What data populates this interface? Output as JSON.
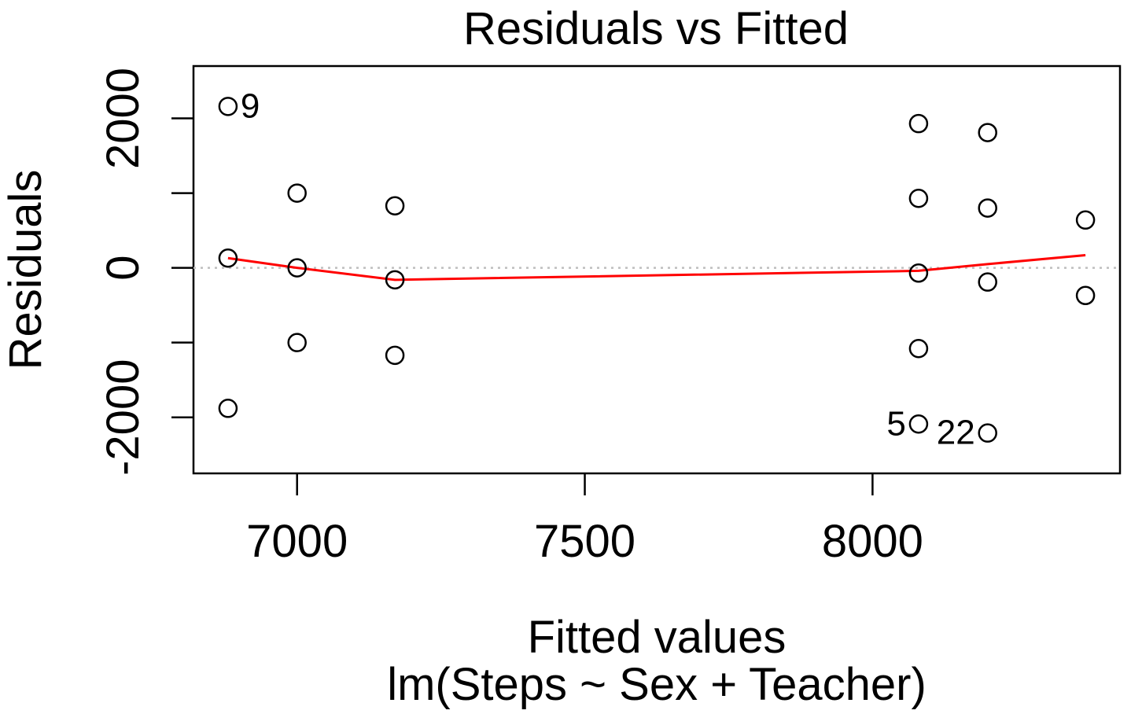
{
  "chart_data": {
    "type": "scatter",
    "title": "Residuals vs Fitted",
    "xlabel": "Fitted values",
    "subtitle": "lm(Steps ~ Sex + Teacher)",
    "ylabel": "Residuals",
    "xlim": [
      6820,
      8430
    ],
    "ylim": [
      -2750,
      2700
    ],
    "x_ticks": [
      7000,
      7500,
      8000
    ],
    "y_ticks": [
      -2000,
      -1000,
      0,
      1000,
      2000
    ],
    "y_tick_labels": [
      {
        "value": -2000,
        "label": "-2000"
      },
      {
        "value": 0,
        "label": "0"
      },
      {
        "value": 2000,
        "label": "2000"
      }
    ],
    "points": [
      {
        "x": 6880,
        "y": 2160,
        "label": "9"
      },
      {
        "x": 6880,
        "y": 130,
        "label": ""
      },
      {
        "x": 6880,
        "y": -1880,
        "label": ""
      },
      {
        "x": 7000,
        "y": 1000,
        "label": ""
      },
      {
        "x": 7000,
        "y": 0,
        "label": ""
      },
      {
        "x": 7000,
        "y": -1000,
        "label": ""
      },
      {
        "x": 7170,
        "y": 830,
        "label": ""
      },
      {
        "x": 7170,
        "y": -160,
        "label": ""
      },
      {
        "x": 7170,
        "y": -1170,
        "label": ""
      },
      {
        "x": 8080,
        "y": 1930,
        "label": ""
      },
      {
        "x": 8080,
        "y": 930,
        "label": ""
      },
      {
        "x": 8080,
        "y": -70,
        "label": ""
      },
      {
        "x": 8080,
        "y": -1080,
        "label": ""
      },
      {
        "x": 8080,
        "y": -2090,
        "label": "5"
      },
      {
        "x": 8200,
        "y": 1810,
        "label": ""
      },
      {
        "x": 8200,
        "y": 800,
        "label": ""
      },
      {
        "x": 8200,
        "y": -190,
        "label": ""
      },
      {
        "x": 8200,
        "y": -2210,
        "label": "22"
      },
      {
        "x": 8370,
        "y": 640,
        "label": ""
      },
      {
        "x": 8370,
        "y": -370,
        "label": ""
      }
    ],
    "smooth_line": {
      "color": "#ff0000",
      "x": [
        6880,
        7000,
        7170,
        8080,
        8200,
        8370
      ],
      "y": [
        130,
        0,
        -160,
        -40,
        50,
        170
      ]
    },
    "reference_line": {
      "y": 0,
      "color": "#bebebe",
      "style": "dotted"
    },
    "grid": false,
    "legend": "none"
  }
}
